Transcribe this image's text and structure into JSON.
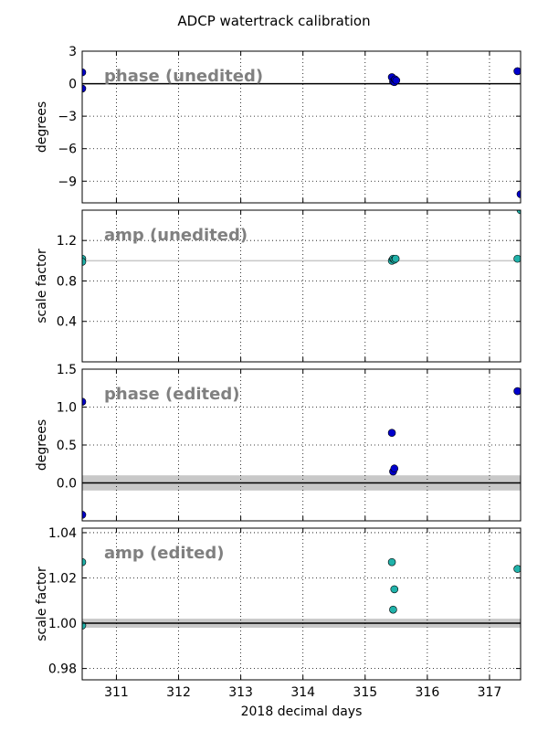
{
  "chart_data": {
    "title": "ADCP watertrack calibration",
    "xlabel": "2018 decimal days",
    "xlim": [
      310.45,
      317.5
    ],
    "xticks": [
      311,
      312,
      313,
      314,
      315,
      316,
      317
    ],
    "grid": true,
    "panels": [
      {
        "type": "scatter",
        "label": "phase (unedited)",
        "ylabel": "degrees",
        "ylim": [
          -11.0,
          3.0
        ],
        "yticks": [
          3,
          0,
          -3,
          -6,
          -9
        ],
        "ytick_labels": [
          "3",
          "0",
          "−3",
          "−6",
          "−9"
        ],
        "point_color": "#0000cc",
        "reference_line": {
          "y": 0,
          "color": "#000000"
        },
        "points": [
          {
            "x": 310.45,
            "y": 1.05
          },
          {
            "x": 310.45,
            "y": -0.45
          },
          {
            "x": 315.43,
            "y": 0.6
          },
          {
            "x": 315.45,
            "y": 0.2
          },
          {
            "x": 315.47,
            "y": 0.15
          },
          {
            "x": 315.48,
            "y": 0.4
          },
          {
            "x": 315.5,
            "y": 0.3
          },
          {
            "x": 317.45,
            "y": 1.15
          },
          {
            "x": 317.5,
            "y": -10.2
          }
        ]
      },
      {
        "type": "scatter",
        "label": "amp (unedited)",
        "ylabel": "scale factor",
        "ylim": [
          0.0,
          1.5
        ],
        "yticks": [
          1.2,
          0.8,
          0.4
        ],
        "ytick_labels": [
          "1.2",
          "0.8",
          "0.4"
        ],
        "point_color": "#20b2aa",
        "reference_line": {
          "y": 1.0,
          "color": "#c8c8c8"
        },
        "points": [
          {
            "x": 310.45,
            "y": 1.02
          },
          {
            "x": 310.45,
            "y": 0.99
          },
          {
            "x": 315.43,
            "y": 1.0
          },
          {
            "x": 315.45,
            "y": 1.02
          },
          {
            "x": 315.47,
            "y": 1.01
          },
          {
            "x": 315.49,
            "y": 1.02
          },
          {
            "x": 317.45,
            "y": 1.02
          },
          {
            "x": 317.5,
            "y": 1.5
          }
        ]
      },
      {
        "type": "scatter",
        "label": "phase (edited)",
        "ylabel": "degrees",
        "ylim": [
          -0.5,
          1.5
        ],
        "yticks": [
          1.5,
          1.0,
          0.5,
          0.0
        ],
        "ytick_labels": [
          "1.5",
          "1.0",
          "0.5",
          "0.0"
        ],
        "point_color": "#0000cc",
        "reference_line": {
          "y": 0.0,
          "color": "#000000"
        },
        "reference_band": {
          "ymin": -0.1,
          "ymax": 0.1,
          "color": "#c8c8c8"
        },
        "points": [
          {
            "x": 310.45,
            "y": 1.07
          },
          {
            "x": 310.45,
            "y": -0.42
          },
          {
            "x": 315.43,
            "y": 0.66
          },
          {
            "x": 315.45,
            "y": 0.15
          },
          {
            "x": 315.47,
            "y": 0.19
          },
          {
            "x": 317.45,
            "y": 1.21
          }
        ]
      },
      {
        "type": "scatter",
        "label": "amp (edited)",
        "ylabel": "scale factor",
        "ylim": [
          0.975,
          1.042
        ],
        "yticks": [
          1.04,
          1.02,
          1.0,
          0.98
        ],
        "ytick_labels": [
          "1.04",
          "1.02",
          "1.00",
          "0.98"
        ],
        "point_color": "#20b2aa",
        "reference_line": {
          "y": 1.0,
          "color": "#000000"
        },
        "reference_band": {
          "ymin": 0.998,
          "ymax": 1.002,
          "color": "#c8c8c8"
        },
        "points": [
          {
            "x": 310.45,
            "y": 1.027
          },
          {
            "x": 310.45,
            "y": 0.999
          },
          {
            "x": 315.43,
            "y": 1.027
          },
          {
            "x": 315.45,
            "y": 1.006
          },
          {
            "x": 315.47,
            "y": 1.015
          },
          {
            "x": 317.45,
            "y": 1.024
          }
        ]
      }
    ]
  }
}
